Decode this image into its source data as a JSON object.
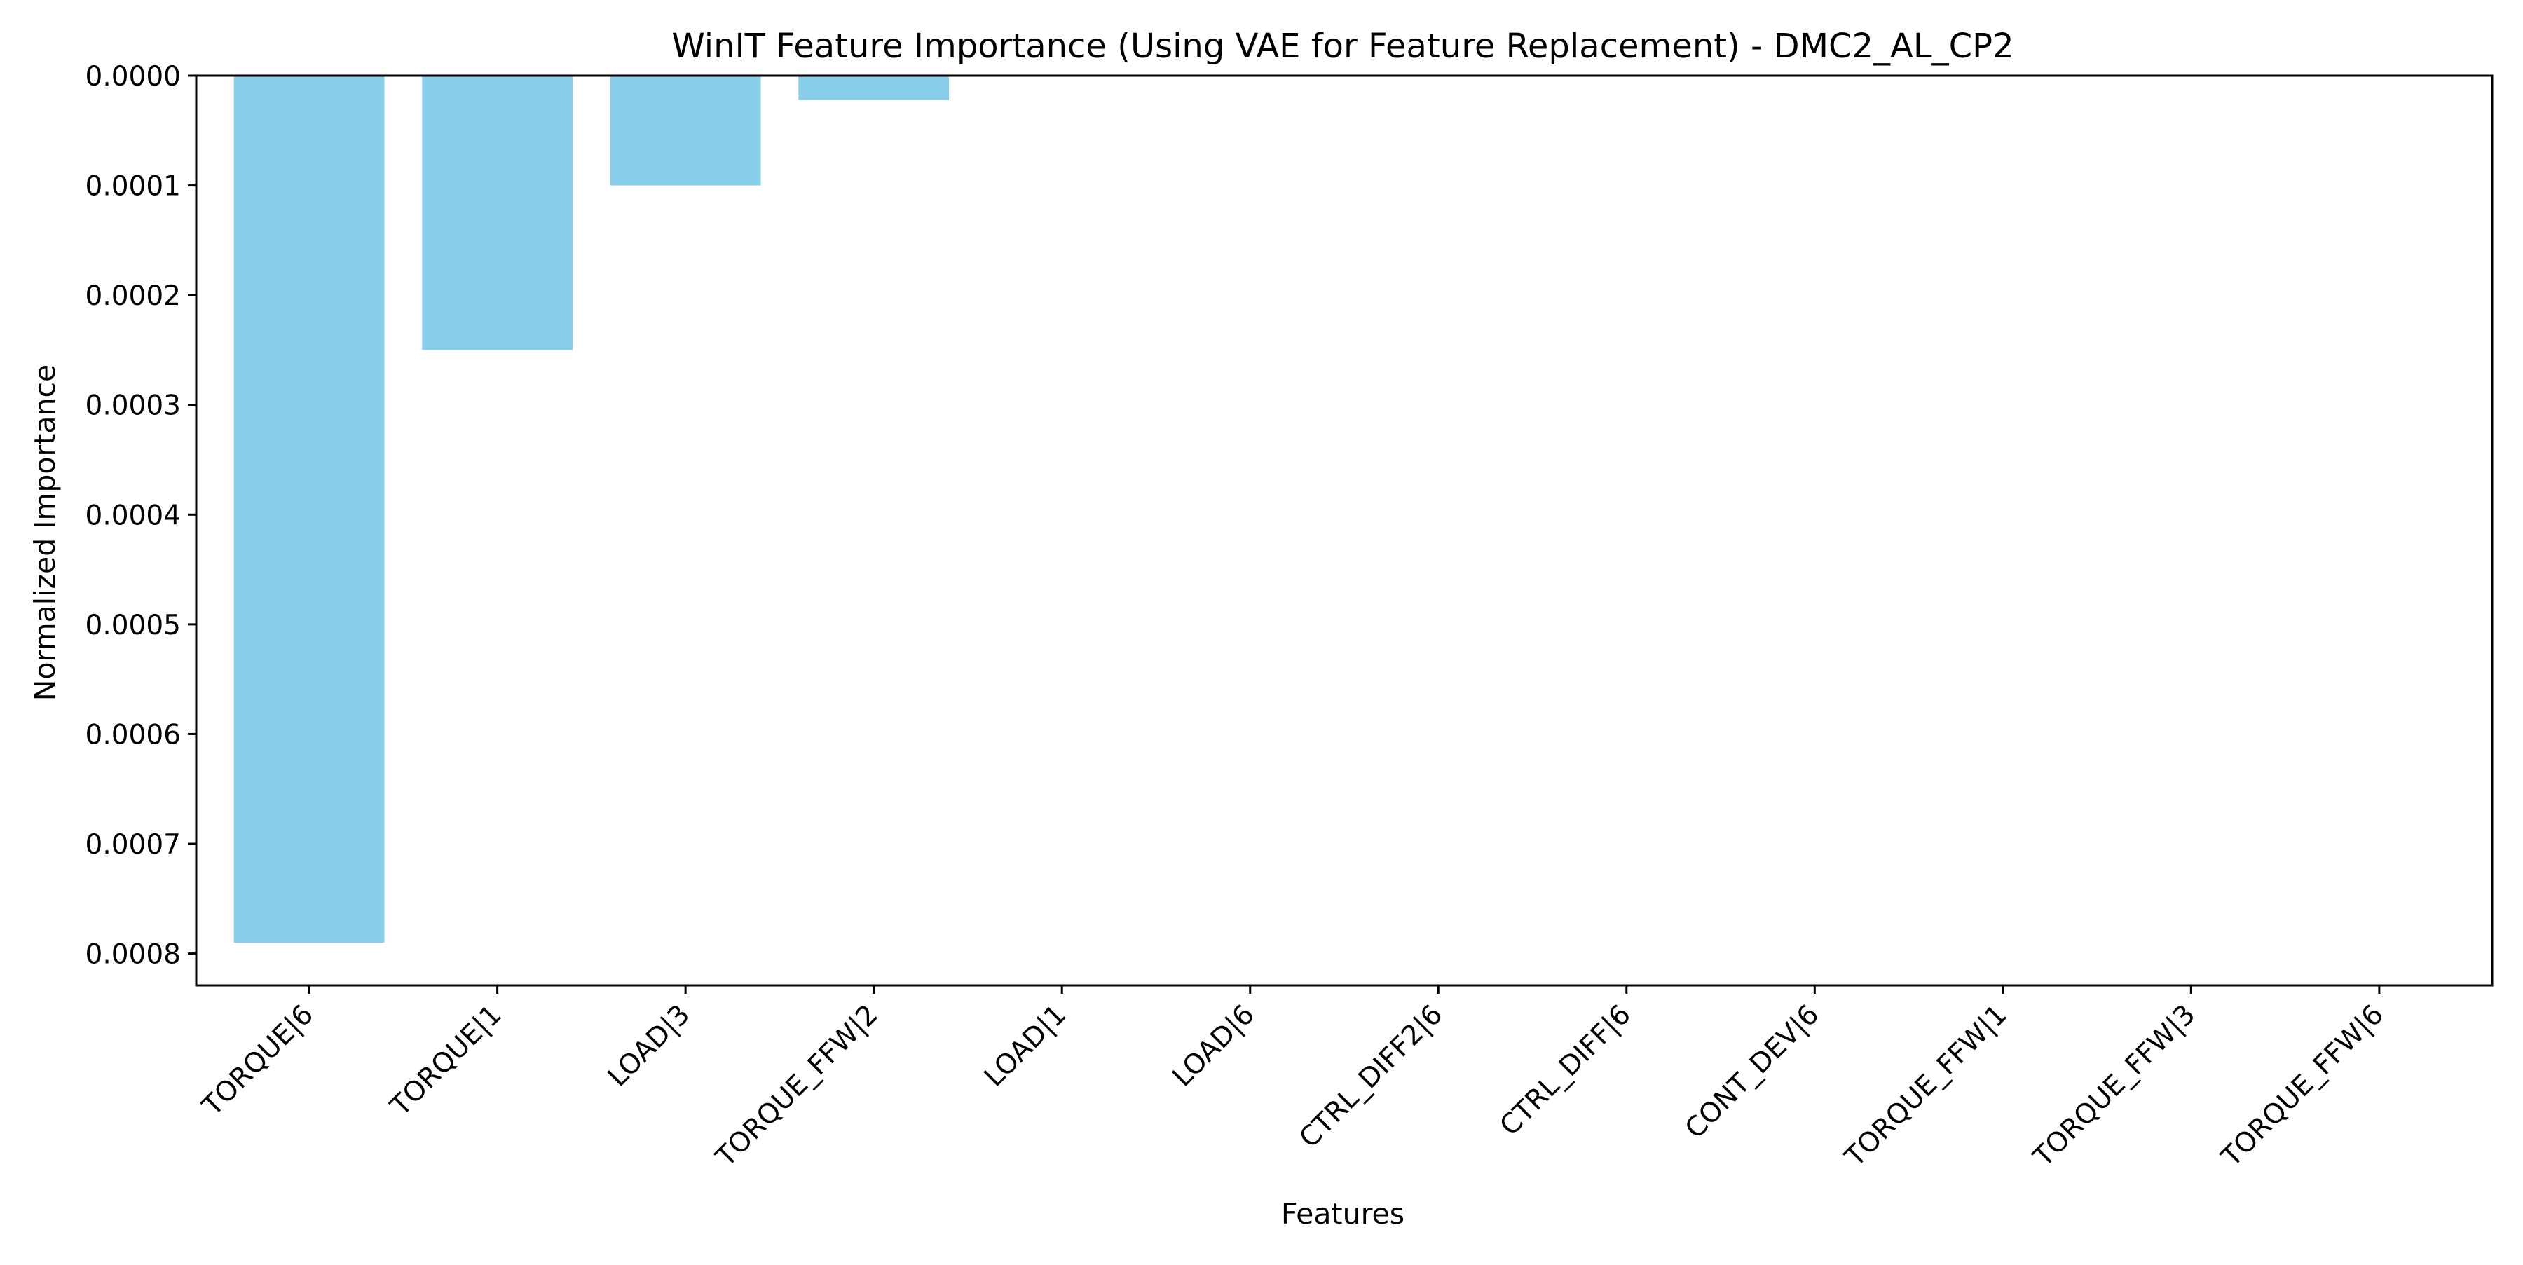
{
  "chart_data": {
    "type": "bar",
    "title": "WinIT Feature Importance (Using VAE for Feature Replacement) - DMC2_AL_CP2",
    "xlabel": "Features",
    "ylabel": "Normalized Importance",
    "categories": [
      "TORQUE|6",
      "TORQUE|1",
      "LOAD|3",
      "TORQUE_FFW|2",
      "LOAD|1",
      "LOAD|6",
      "CTRL_DIFF2|6",
      "CTRL_DIFF|6",
      "CONT_DEV|6",
      "TORQUE_FFW|1",
      "TORQUE_FFW|3",
      "TORQUE_FFW|6"
    ],
    "values": [
      -0.00079,
      -0.00025,
      -0.0001,
      -2.2e-05,
      0,
      0,
      0,
      0,
      0,
      0,
      0,
      0
    ],
    "ylim": [
      -0.000829,
      0
    ],
    "y_ticks": [
      0,
      -0.0001,
      -0.0002,
      -0.0003,
      -0.0004,
      -0.0005,
      -0.0006,
      -0.0007,
      -0.0008
    ],
    "y_tick_labels": [
      "0.0000",
      "0.0001",
      "0.0002",
      "0.0003",
      "0.0004",
      "0.0005",
      "0.0006",
      "0.0007",
      "0.0008"
    ],
    "bar_color": "#87ceeb",
    "grid": false,
    "legend": "none"
  }
}
